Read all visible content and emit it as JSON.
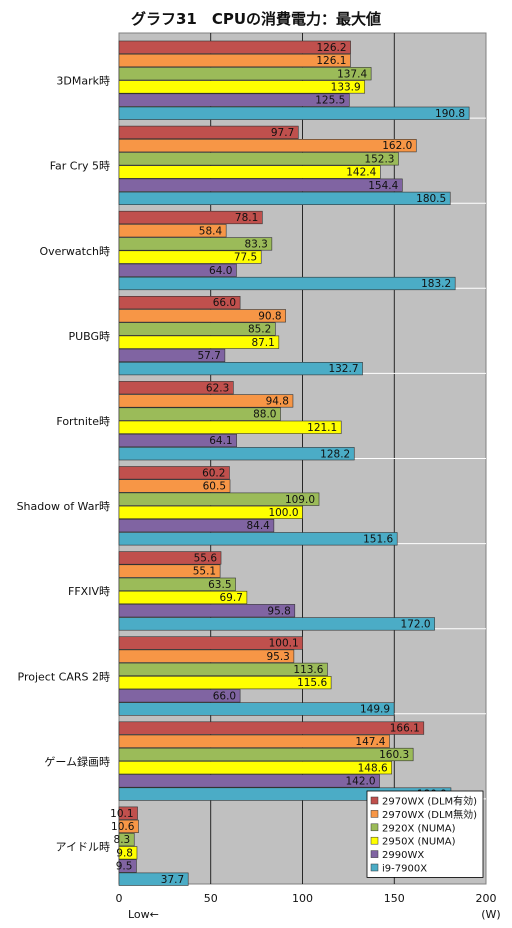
{
  "chart_data": {
    "type": "bar",
    "orientation": "horizontal",
    "title": "グラフ31　CPUの消費電力：最大値",
    "unit": "(W)",
    "axis_note": "Low←",
    "xlim": [
      0,
      200
    ],
    "x_ticks": [
      "0",
      "50",
      "100",
      "150",
      "200"
    ],
    "grid": true,
    "legend_position": "bottom-right",
    "categories": [
      "3DMark時",
      "Far Cry 5時",
      "Overwatch時",
      "PUBG時",
      "Fortnite時",
      "Shadow of War時",
      "FFXIV時",
      "Project CARS 2時",
      "ゲーム録画時",
      "アイドル時"
    ],
    "series": [
      {
        "name": "2970WX (DLM有効)",
        "color": "#c0504d",
        "values": [
          126.2,
          97.7,
          78.1,
          66.0,
          62.3,
          60.2,
          55.6,
          100.1,
          166.1,
          10.1
        ]
      },
      {
        "name": "2970WX (DLM無効)",
        "color": "#f79646",
        "values": [
          126.1,
          162.0,
          58.4,
          90.8,
          94.8,
          60.5,
          55.1,
          95.3,
          147.4,
          10.6
        ]
      },
      {
        "name": "2920X (NUMA)",
        "color": "#9bbb59",
        "values": [
          137.4,
          152.3,
          83.3,
          85.2,
          88.0,
          109.0,
          63.5,
          113.6,
          160.3,
          8.3
        ]
      },
      {
        "name": "2950X (NUMA)",
        "color": "#ffff00",
        "values": [
          133.9,
          142.4,
          77.5,
          87.1,
          121.1,
          100.0,
          69.7,
          115.6,
          148.6,
          9.8
        ]
      },
      {
        "name": "2990WX",
        "color": "#8064a2",
        "values": [
          125.5,
          154.4,
          64.0,
          57.7,
          64.1,
          84.4,
          95.8,
          66.0,
          142.0,
          9.5
        ]
      },
      {
        "name": "i9-7900X",
        "color": "#4bacc6",
        "values": [
          190.8,
          180.5,
          183.2,
          132.7,
          128.2,
          151.6,
          172.0,
          149.9,
          180.9,
          37.7
        ]
      }
    ],
    "value_labels": [
      [
        "126.2",
        "97.7",
        "78.1",
        "66.0",
        "62.3",
        "60.2",
        "55.6",
        "100.1",
        "166.1",
        "10.1"
      ],
      [
        "126.1",
        "162.0",
        "58.4",
        "90.8",
        "94.8",
        "60.5",
        "55.1",
        "95.3",
        "147.4",
        "10.6"
      ],
      [
        "137.4",
        "152.3",
        "83.3",
        "85.2",
        "88.0",
        "109.0",
        "63.5",
        "113.6",
        "160.3",
        "8.3"
      ],
      [
        "133.9",
        "142.4",
        "77.5",
        "87.1",
        "121.1",
        "100.0",
        "69.7",
        "115.6",
        "148.6",
        "9.8"
      ],
      [
        "125.5",
        "154.4",
        "64.0",
        "57.7",
        "64.1",
        "84.4",
        "95.8",
        "66.0",
        "142.0",
        "9.5"
      ],
      [
        "190.8",
        "180.5",
        "183.2",
        "132.7",
        "128.2",
        "151.6",
        "172.0",
        "149.9",
        "180.9",
        "37.7"
      ]
    ]
  }
}
